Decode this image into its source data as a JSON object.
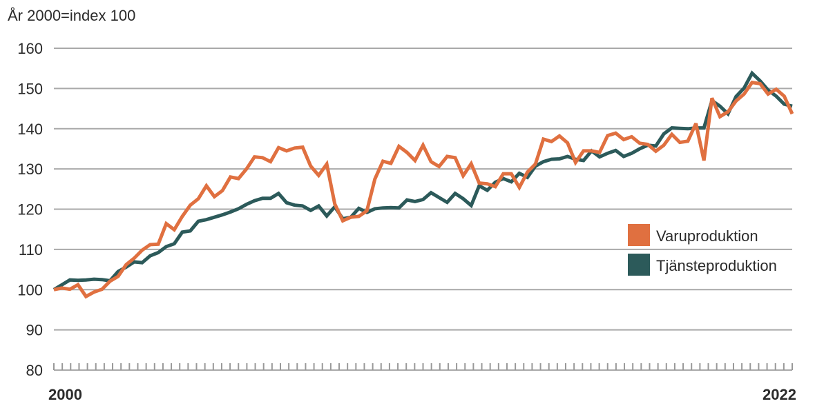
{
  "chart_data": {
    "type": "line",
    "subtitle": "År 2000=index 100",
    "ylim": [
      80,
      160
    ],
    "yticks": [
      160,
      150,
      140,
      130,
      120,
      110,
      100,
      90,
      80
    ],
    "x_start_label": "2000",
    "x_end_label": "2022",
    "legend_position": "right",
    "grid": true,
    "series": [
      {
        "name": "Varuproduktion",
        "color": "#E07040",
        "values": [
          100,
          100.4,
          100.1,
          101.2,
          98.3,
          99.4,
          100.1,
          102.1,
          103.3,
          106.2,
          107.8,
          109.8,
          111.2,
          111.3,
          116.4,
          114.9,
          118.2,
          121.0,
          122.6,
          125.8,
          123.1,
          124.6,
          128.0,
          127.6,
          130.0,
          133.0,
          132.8,
          131.8,
          135.3,
          134.5,
          135.2,
          135.4,
          130.7,
          128.4,
          131.2,
          121.3,
          117.1,
          118.0,
          118.2,
          119.6,
          127.5,
          131.9,
          131.4,
          135.6,
          134.1,
          132.1,
          135.9,
          131.8,
          130.6,
          133.1,
          132.8,
          128.3,
          131.3,
          126.5,
          126.3,
          125.6,
          128.8,
          128.8,
          125.4,
          129.2,
          131.2,
          137.4,
          136.8,
          138.2,
          136.5,
          131.6,
          134.5,
          134.5,
          134.1,
          138.3,
          138.9,
          137.3,
          138.0,
          136.4,
          136.1,
          134.4,
          135.9,
          138.6,
          136.6,
          136.9,
          141.3,
          132.1,
          147.6,
          143.0,
          144.2,
          146.9,
          148.6,
          151.5,
          151.2,
          148.6,
          149.8,
          148.1,
          143.7
        ]
      },
      {
        "name": "Tjänsteproduktion",
        "color": "#2C5A5A",
        "values": [
          100,
          101.2,
          102.4,
          102.3,
          102.4,
          102.6,
          102.5,
          102.2,
          104.5,
          105.6,
          106.9,
          106.7,
          108.4,
          109.2,
          110.7,
          111.4,
          114.3,
          114.6,
          117.0,
          117.4,
          118.0,
          118.6,
          119.3,
          120.1,
          121.2,
          122.1,
          122.7,
          122.7,
          123.9,
          121.6,
          121.0,
          120.8,
          119.7,
          120.8,
          118.3,
          120.6,
          117.6,
          118.0,
          120.2,
          119.2,
          120.1,
          120.3,
          120.4,
          120.3,
          122.3,
          121.9,
          122.4,
          124.1,
          122.9,
          121.7,
          123.9,
          122.6,
          120.9,
          125.8,
          124.7,
          126.7,
          127.6,
          126.8,
          128.9,
          127.9,
          130.7,
          131.8,
          132.4,
          132.5,
          133.1,
          132.4,
          132.1,
          134.5,
          133.0,
          133.9,
          134.6,
          133.1,
          133.9,
          135.0,
          135.9,
          135.7,
          138.7,
          140.2,
          140.1,
          140.0,
          140.2,
          140.2,
          147.0,
          145.6,
          143.7,
          148.0,
          150.1,
          153.8,
          151.9,
          149.6,
          148.1,
          146.1,
          145.6
        ]
      }
    ]
  }
}
